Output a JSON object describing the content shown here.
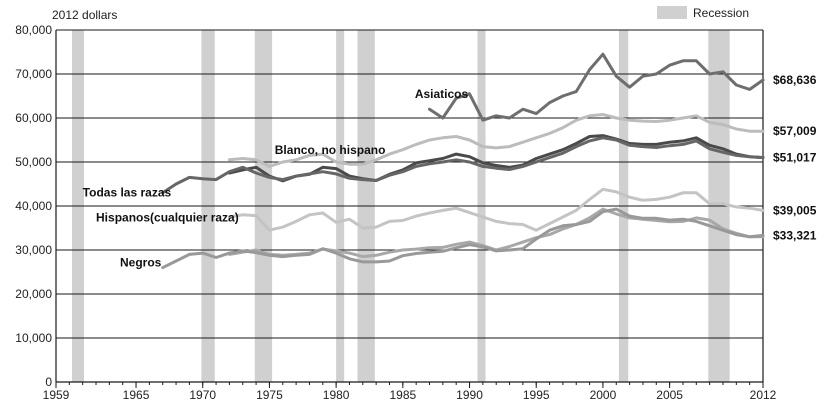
{
  "chart_data": {
    "type": "line",
    "title": "",
    "ylabel": "2012 dollars",
    "xlabel": "",
    "xlim": [
      1959,
      2012
    ],
    "ylim": [
      0,
      80000
    ],
    "y_ticks": [
      "0",
      "10,000",
      "20,000",
      "30,000",
      "40,000",
      "50,000",
      "60,000",
      "70,000",
      "80,000"
    ],
    "x_ticks": [
      "1959",
      "1965",
      "1970",
      "1975",
      "1980",
      "1985",
      "1990",
      "1995",
      "2000",
      "2005",
      "2012"
    ],
    "grid": "horizontal",
    "legend": {
      "label": "Recession",
      "position": "top-right",
      "color": "#d0d0d0"
    },
    "recessions": [
      [
        1960.2,
        1961.1
      ],
      [
        1969.9,
        1970.9
      ],
      [
        1973.9,
        1975.2
      ],
      [
        1980.0,
        1980.6
      ],
      [
        1981.6,
        1982.9
      ],
      [
        1990.6,
        1991.2
      ],
      [
        2001.2,
        2001.9
      ],
      [
        2007.9,
        2009.5
      ]
    ],
    "series": [
      {
        "name": "Asiaticos",
        "color": "#6e6e6e",
        "end_label": "$68,636",
        "label_x": 1985.9,
        "label_y": 64500,
        "x": [
          1987,
          1988,
          1989,
          1990,
          1991,
          1992,
          1993,
          1994,
          1995,
          1996,
          1997,
          1998,
          1999,
          2000,
          2001,
          2002,
          2003,
          2004,
          2005,
          2006,
          2007,
          2008,
          2009,
          2010,
          2011,
          2012
        ],
        "values": [
          62000,
          60000,
          64500,
          65500,
          59500,
          60500,
          60000,
          62000,
          61000,
          63500,
          65000,
          66000,
          71000,
          74500,
          69500,
          67000,
          69500,
          70000,
          72000,
          73000,
          73000,
          70000,
          70500,
          67500,
          66500,
          68636
        ]
      },
      {
        "name": "",
        "color": "#bcbcbc",
        "end_label": "$57,009",
        "x": [
          1972,
          1973,
          1974,
          1975,
          1976,
          1977,
          1978,
          1979,
          1980,
          1981,
          1982,
          1983,
          1984,
          1985,
          1986,
          1987,
          1988,
          1989,
          1990,
          1991,
          1992,
          1993,
          1994,
          1995,
          1996,
          1997,
          1998,
          1999,
          2000,
          2001,
          2002,
          2003,
          2004,
          2005,
          2006,
          2007,
          2008,
          2009,
          2010,
          2011,
          2012
        ],
        "values": [
          50500,
          50800,
          50500,
          49000,
          50000,
          50500,
          51500,
          51800,
          50000,
          49500,
          49500,
          50500,
          51800,
          52800,
          54000,
          55000,
          55500,
          55800,
          55000,
          53500,
          53200,
          53500,
          54500,
          55500,
          56500,
          57800,
          59500,
          60500,
          60800,
          60000,
          59500,
          59300,
          59200,
          59500,
          60000,
          60500,
          59000,
          58500,
          57500,
          57000,
          57009
        ]
      },
      {
        "name": "Blanco, no hispano",
        "color": "#4a4a4a",
        "end_label": "$51,017",
        "label_x": 1975.4,
        "label_y": 51800,
        "x": [
          1972,
          1973,
          1974,
          1975,
          1976,
          1977,
          1978,
          1979,
          1980,
          1981,
          1982,
          1983,
          1984,
          1985,
          1986,
          1987,
          1988,
          1989,
          1990,
          1991,
          1992,
          1993,
          1994,
          1995,
          1996,
          1997,
          1998,
          1999,
          2000,
          2001,
          2002,
          2003,
          2004,
          2005,
          2006,
          2007,
          2008,
          2009,
          2010,
          2011,
          2012
        ],
        "values": [
          47500,
          48200,
          48800,
          46800,
          45700,
          46800,
          47200,
          48800,
          48500,
          46800,
          46200,
          45800,
          47200,
          48200,
          49800,
          50300,
          50800,
          51800,
          51200,
          49800,
          49200,
          48800,
          49300,
          50800,
          51800,
          52800,
          54200,
          55800,
          56000,
          55200,
          54200,
          54000,
          54000,
          54500,
          54800,
          55500,
          53800,
          53000,
          51800,
          51200,
          51017
        ]
      },
      {
        "name": "Todas las razas",
        "color": "#666666",
        "label_x": 1961.0,
        "label_y": 42200,
        "x": [
          1967,
          1968,
          1969,
          1970,
          1971,
          1972,
          1973,
          1974,
          1975,
          1976,
          1977,
          1978,
          1979,
          1980,
          1981,
          1982,
          1983,
          1984,
          1985,
          1986,
          1987,
          1988,
          1989,
          1990,
          1991,
          1992,
          1993,
          1994,
          1995,
          1996,
          1997,
          1998,
          1999,
          2000,
          2001,
          2002,
          2003,
          2004,
          2005,
          2006,
          2007,
          2008,
          2009,
          2010,
          2011,
          2012
        ],
        "values": [
          43000,
          45000,
          46500,
          46200,
          46000,
          47800,
          48800,
          47500,
          46500,
          46000,
          46800,
          47300,
          47800,
          47300,
          46300,
          46000,
          45800,
          47000,
          47800,
          49000,
          49600,
          50000,
          50500,
          50000,
          49000,
          48600,
          48300,
          49000,
          50000,
          51000,
          52000,
          53500,
          54800,
          55500,
          55000,
          53800,
          53500,
          53300,
          53700,
          54000,
          54800,
          53000,
          52200,
          51500,
          51200,
          51000
        ]
      },
      {
        "name": "",
        "color": "#c4c4c4",
        "end_label": "$39,005",
        "x": [
          1972,
          1973,
          1974,
          1975,
          1976,
          1977,
          1978,
          1979,
          1980,
          1981,
          1982,
          1983,
          1984,
          1985,
          1986,
          1987,
          1988,
          1989,
          1990,
          1991,
          1992,
          1993,
          1994,
          1995,
          1996,
          1997,
          1998,
          1999,
          2000,
          2001,
          2002,
          2003,
          2004,
          2005,
          2006,
          2007,
          2008,
          2009,
          2010,
          2011,
          2012
        ],
        "values": [
          37500,
          38000,
          37800,
          34500,
          35200,
          36500,
          38000,
          38400,
          36300,
          37000,
          35000,
          35200,
          36500,
          36700,
          37700,
          38400,
          39000,
          39500,
          38500,
          37500,
          36500,
          36000,
          35800,
          34500,
          36000,
          37500,
          39000,
          41500,
          43800,
          43200,
          42000,
          41300,
          41500,
          42000,
          43000,
          43000,
          40500,
          40500,
          39800,
          39500,
          39005
        ]
      },
      {
        "name": "Hispanos(cualquier raza)",
        "color": "#a8a8a8",
        "label_x": 1962.0,
        "label_y": 36500,
        "x": [
          1972,
          1973,
          1974,
          1975,
          1976,
          1977,
          1978,
          1979,
          1980,
          1981,
          1982,
          1983,
          1984,
          1985,
          1986,
          1987,
          1988,
          1989,
          1990,
          1991,
          1992,
          1993,
          1994,
          1995,
          1996,
          1997,
          1998,
          1999,
          2000,
          2001,
          2002,
          2003,
          2004,
          2005,
          2006,
          2007,
          2008,
          2009,
          2010,
          2011,
          2012
        ],
        "values": [
          29000,
          29500,
          30000,
          29000,
          28800,
          29000,
          29300,
          30200,
          29800,
          29300,
          28500,
          28800,
          29500,
          30000,
          30200,
          30500,
          30600,
          31300,
          31800,
          31000,
          30000,
          30800,
          31800,
          32800,
          33500,
          34800,
          35800,
          37300,
          39300,
          38200,
          37300,
          37000,
          36700,
          36400,
          36500,
          37300,
          36800,
          34800,
          33800,
          33000,
          33000
        ]
      },
      {
        "name": "Negros",
        "color": "#999999",
        "end_label": "$33,321",
        "label_x": 1963.8,
        "label_y": 26300,
        "x": [
          1967,
          1968,
          1969,
          1970,
          1971,
          1972,
          1973,
          1974,
          1975,
          1976,
          1977,
          1978,
          1979,
          1980,
          1981,
          1982,
          1983,
          1984,
          1985,
          1986,
          1987,
          1988,
          1989,
          1990,
          1991,
          1992,
          1993,
          1994,
          1995,
          1996,
          1997,
          1998,
          1999,
          2000,
          2001,
          2002,
          2003,
          2004,
          2005,
          2006,
          2007,
          2008,
          2009,
          2010,
          2011,
          2012
        ],
        "values": [
          26000,
          27500,
          29000,
          29300,
          28300,
          29300,
          29800,
          29400,
          28800,
          28500,
          28800,
          29000,
          30300,
          29300,
          28000,
          27300,
          27300,
          27500,
          28700,
          29200,
          29500,
          29700,
          30500,
          31200,
          30700,
          29800,
          30000,
          30300,
          32500,
          34500,
          35500,
          35800,
          36500,
          38700,
          39300,
          37700,
          37200,
          37200,
          36800,
          37000,
          36500,
          35500,
          34500,
          33500,
          33000,
          33321
        ]
      }
    ]
  }
}
